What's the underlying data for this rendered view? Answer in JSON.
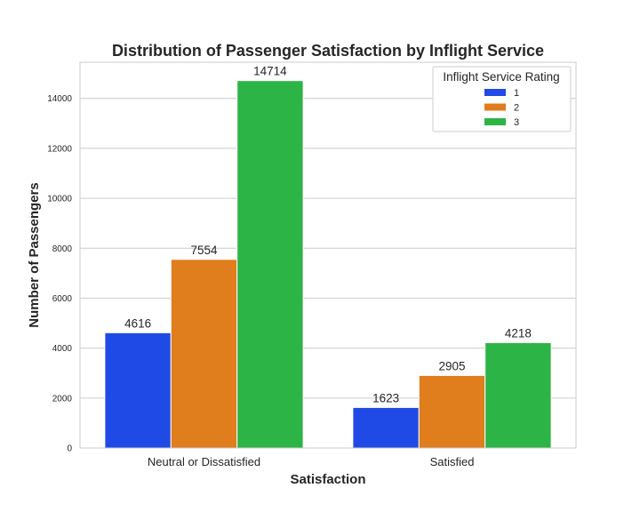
{
  "chart_data": {
    "type": "bar",
    "title": "Distribution of Passenger Satisfaction by Inflight Service",
    "xlabel": "Satisfaction",
    "ylabel": "Number of Passengers",
    "categories": [
      "Neutral or Dissatisfied",
      "Satisfied"
    ],
    "series": [
      {
        "name": "1",
        "values": [
          4616,
          1623
        ],
        "color": "#1f4ae5"
      },
      {
        "name": "2",
        "values": [
          7554,
          2905
        ],
        "color": "#e07d1c"
      },
      {
        "name": "3",
        "values": [
          14714,
          4218
        ],
        "color": "#2db446"
      }
    ],
    "ylim": [
      0,
      15450
    ],
    "yticks": [
      0,
      2000,
      4000,
      6000,
      8000,
      10000,
      12000,
      14000
    ],
    "grid": true,
    "legend": {
      "title": "Inflight Service Rating",
      "placement": "top-right"
    }
  }
}
